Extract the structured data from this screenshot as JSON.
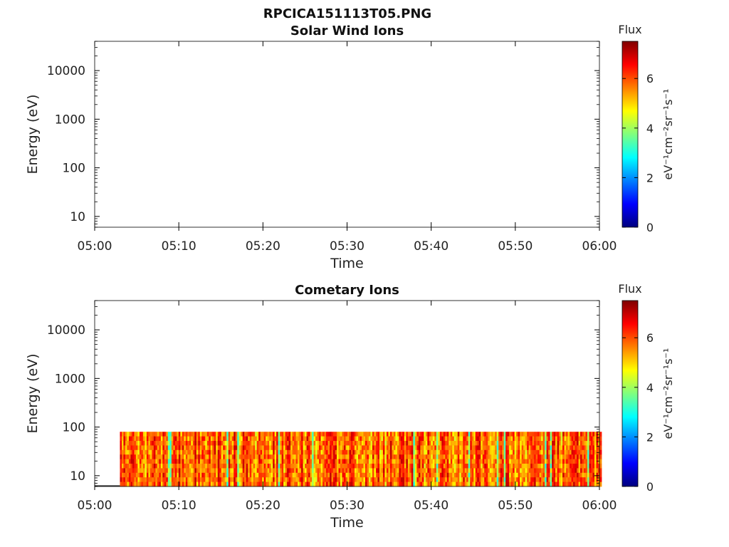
{
  "figure_title": "RPCICA151113T05.PNG",
  "colormap": [
    "#00007f",
    "#0000ff",
    "#007fff",
    "#00ffff",
    "#7fff7f",
    "#ffff00",
    "#ff7f00",
    "#ff0000",
    "#7f0000"
  ],
  "chart_data": [
    {
      "type": "heatmap",
      "title": "Solar Wind Ions",
      "xlabel": "Time",
      "ylabel": "Energy (eV)",
      "yscale": "log",
      "xlim": [
        "05:00",
        "06:00"
      ],
      "ylim": [
        6,
        40000
      ],
      "xticks": [
        "05:00",
        "05:10",
        "05:20",
        "05:30",
        "05:40",
        "05:50",
        "06:00"
      ],
      "yticks": [
        "10",
        "100",
        "1000",
        "10000"
      ],
      "colorbar": {
        "label": "Flux",
        "unit": "eV⁻¹cm⁻²sr⁻¹s⁻¹",
        "range": [
          0,
          7.5
        ],
        "ticks": [
          "0",
          "2",
          "4",
          "6"
        ]
      },
      "data": []
    },
    {
      "type": "heatmap",
      "title": "Cometary Ions",
      "xlabel": "Time",
      "ylabel": "Energy (eV)",
      "yscale": "log",
      "xlim": [
        "05:00",
        "06:00"
      ],
      "ylim": [
        6,
        40000
      ],
      "xticks": [
        "05:00",
        "05:10",
        "05:20",
        "05:30",
        "05:40",
        "05:50",
        "06:00"
      ],
      "yticks": [
        "10",
        "100",
        "1000",
        "10000"
      ],
      "colorbar": {
        "label": "Flux",
        "unit": "eV⁻¹cm⁻²sr⁻¹s⁻¹",
        "range": [
          0,
          7.5
        ],
        "ticks": [
          "0",
          "2",
          "4",
          "6"
        ]
      },
      "data_start_time": "05:03",
      "data_end_time": "06:00",
      "energy_range": [
        6,
        80
      ],
      "typical_flux": 5.8,
      "flux_range": [
        3,
        7
      ]
    }
  ]
}
